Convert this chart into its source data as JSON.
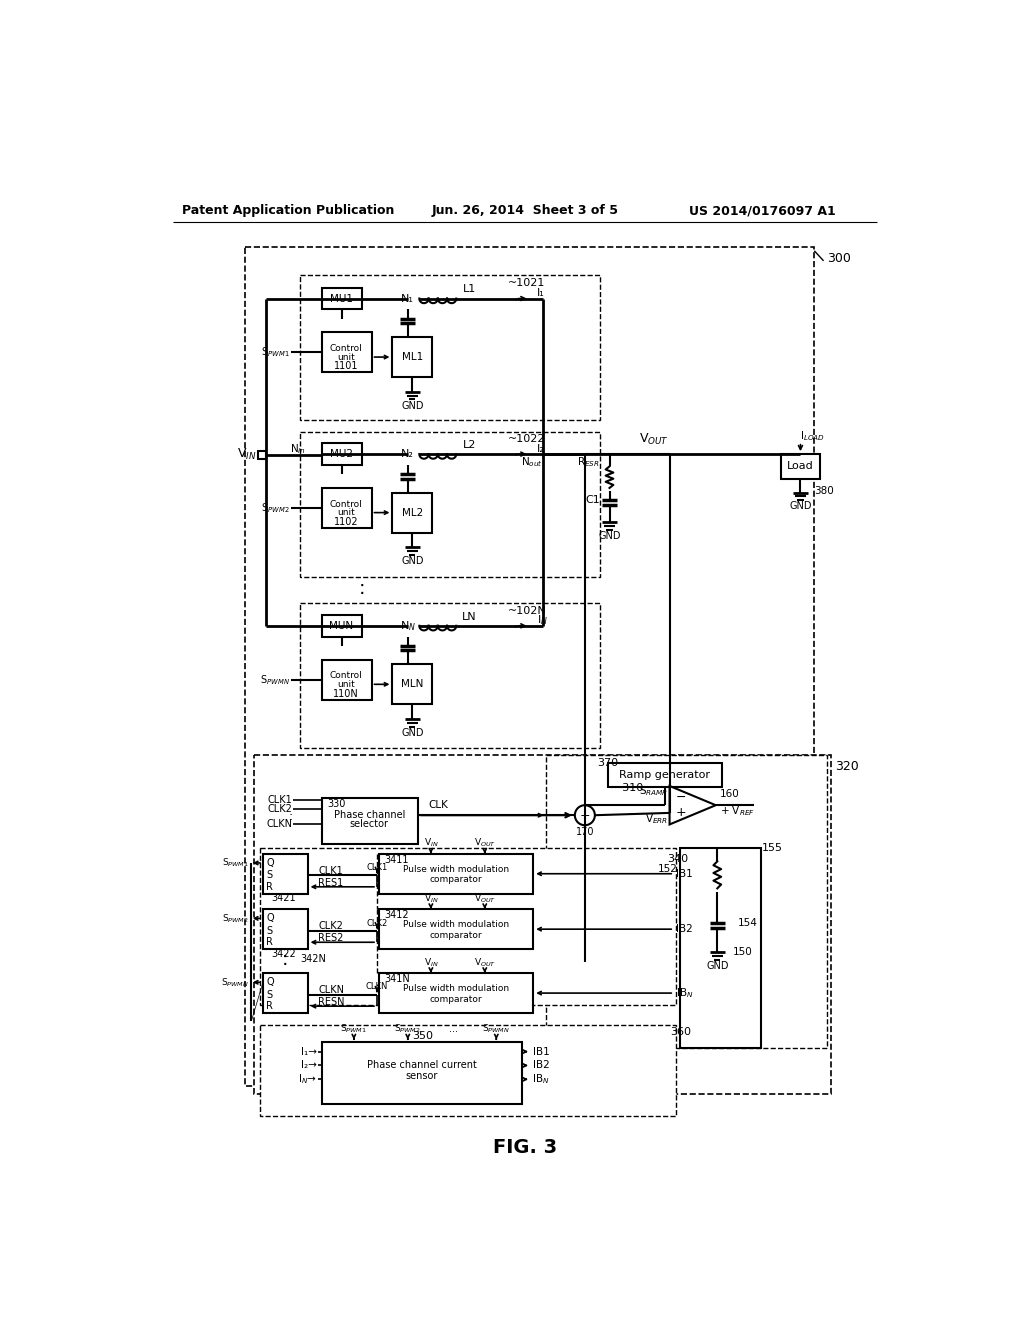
{
  "bg_color": "#ffffff",
  "line_color": "#000000",
  "title_left": "Patent Application Publication",
  "title_center": "Jun. 26, 2014  Sheet 3 of 5",
  "title_right": "US 2014/0176097 A1",
  "fig_label": "FIG. 3"
}
